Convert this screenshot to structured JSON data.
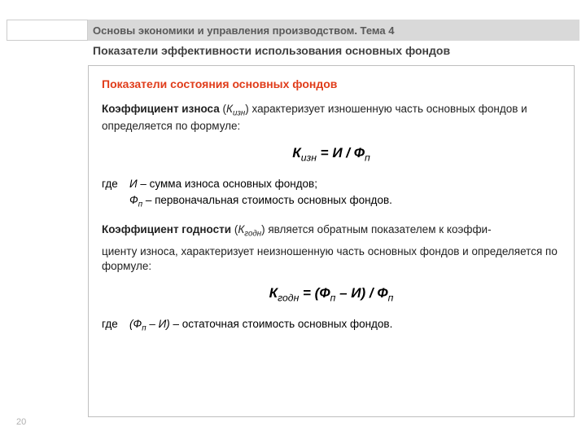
{
  "header": {
    "title": "Основы экономики и управления производством.  Тема 4"
  },
  "subtitle": "Показатели эффективности использования основных фондов",
  "section_title": "Показатели состояния основных фондов",
  "para1": {
    "term": "Коэффициент износа",
    "symbol_prefix": "(",
    "symbol_K": "К",
    "symbol_sub": "изн",
    "symbol_suffix": ")",
    "text": " характеризует изношенную часть основных фондов и определяется по формуле:"
  },
  "formula1": {
    "K": "К",
    "K_sub": "изн",
    "eq": " = И / Ф",
    "F_sub": "п"
  },
  "where1": {
    "label": "где",
    "line1_sym": "И",
    "line1_text": " – сумма износа основных фондов;",
    "line2_sym": "Ф",
    "line2_sub": "п",
    "line2_text": " – первоначальная стоимость основных фондов."
  },
  "para2": {
    "term": "Коэффициент годности",
    "symbol_prefix": "(",
    "symbol_K": "К",
    "symbol_sub": "годн",
    "symbol_suffix": ")",
    "text_a": " является обратным показателем к коэффи-",
    "text_b": "циенту износа, характеризует неизношенную часть основных фондов и определяется по формуле:"
  },
  "formula2": {
    "K": "К",
    "K_sub": "годн",
    "eq_a": " = (Ф",
    "F1_sub": "п",
    "eq_b": " – И) / Ф",
    "F2_sub": "п"
  },
  "where2": {
    "label": "где",
    "line1_pre": "(Ф",
    "line1_sub": "п",
    "line1_post": " – И)",
    "line1_text": " – остаточная стоимость основных фондов."
  },
  "page_number": "20"
}
